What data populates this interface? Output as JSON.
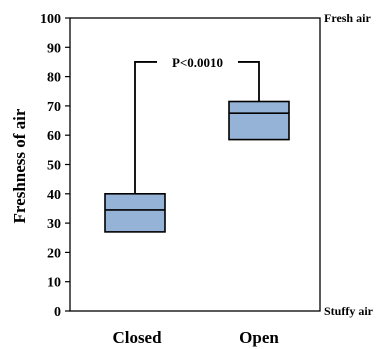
{
  "chart_data": {
    "type": "box",
    "ylabel": "Freshness of air",
    "ylim": [
      0,
      100
    ],
    "yticks": [
      0,
      10,
      20,
      30,
      40,
      50,
      60,
      70,
      80,
      90,
      100
    ],
    "ytick_labels": [
      "0",
      "10",
      "20",
      "30",
      "40",
      "50",
      "60",
      "70",
      "80",
      "90",
      "100"
    ],
    "categories": [
      "Closed",
      "Open"
    ],
    "boxes": [
      {
        "category": "Closed",
        "q1": 27,
        "median": 34.5,
        "q3": 40
      },
      {
        "category": "Open",
        "q1": 58.5,
        "median": 67.5,
        "q3": 71.5
      }
    ],
    "box_fill": "#95B3D7",
    "right_labels": {
      "top": "Fresh air",
      "bottom": "Stuffy air"
    },
    "annotation": {
      "text": "P<0.0010",
      "bracket_y": 85
    },
    "grid": false
  }
}
